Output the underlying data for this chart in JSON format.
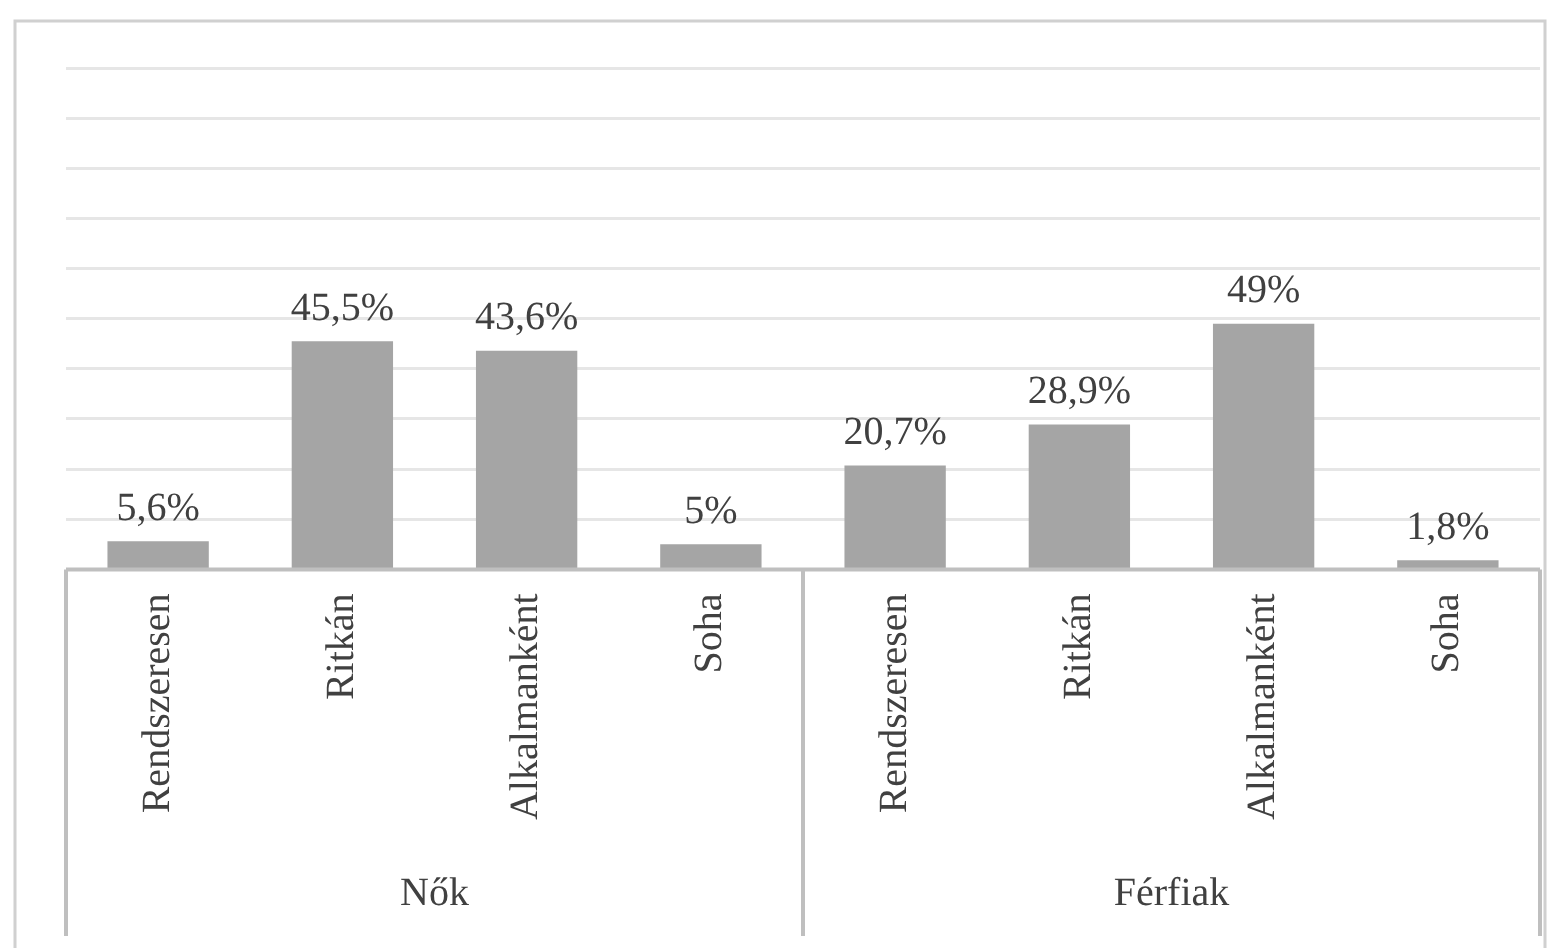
{
  "chart_data": {
    "type": "bar",
    "categories": [
      "Rendszeresen",
      "Ritkán",
      "Alkalmanként",
      "Soha",
      "Rendszeresen",
      "Ritkán",
      "Alkalmanként",
      "Soha"
    ],
    "values": [
      5.6,
      45.5,
      43.6,
      5,
      20.7,
      28.9,
      49,
      1.8
    ],
    "value_labels": [
      "5,6%",
      "45,5%",
      "43,6%",
      "5%",
      "20,7%",
      "28,9%",
      "49%",
      "1,8%"
    ],
    "color": "#a5a5a5",
    "relative": false,
    "ylim": [
      0,
      100
    ],
    "yticks": [
      {
        "value": 0,
        "label": null
      },
      {
        "value": 10,
        "label": null
      },
      {
        "value": 20,
        "label": null
      },
      {
        "value": 30,
        "label": null
      },
      {
        "value": 40,
        "label": null
      },
      {
        "value": 50,
        "label": null
      },
      {
        "value": 60,
        "label": null
      },
      {
        "value": 70,
        "label": null
      },
      {
        "value": 80,
        "label": null
      },
      {
        "value": 90,
        "label": null
      },
      {
        "value": 100,
        "label": null
      }
    ],
    "tick_labels": "x",
    "grid": "y",
    "legend": false,
    "annotations": [
      "Nők",
      "Férfiak"
    ]
  }
}
